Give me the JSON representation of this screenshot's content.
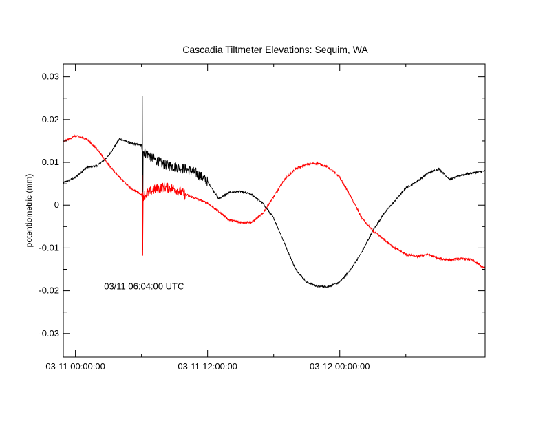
{
  "chart_data": {
    "type": "line",
    "title": "Cascadia Tiltmeter Elevations: Sequim, WA",
    "ylabel": "potentiometric (mm)",
    "xlabel": "",
    "x_unit": "hours since 03-11 00:00:00",
    "xlim": [
      -1.1,
      37.2
    ],
    "ylim": [
      -0.0355,
      0.033
    ],
    "x_ticks": [
      {
        "value": 0,
        "label": "03-11 00:00:00"
      },
      {
        "value": 12,
        "label": "03-11 12:00:00"
      },
      {
        "value": 24,
        "label": "03-12 00:00:00"
      }
    ],
    "x_minor_ticks": [
      6,
      18,
      30
    ],
    "y_ticks": [
      {
        "value": 0.03,
        "label": "0.03"
      },
      {
        "value": 0.02,
        "label": "0.02"
      },
      {
        "value": 0.01,
        "label": "0.01"
      },
      {
        "value": 0,
        "label": "0"
      },
      {
        "value": -0.01,
        "label": "-0.01"
      },
      {
        "value": -0.02,
        "label": "-0.02"
      },
      {
        "value": -0.03,
        "label": "-0.03"
      }
    ],
    "y_minor_ticks": [
      0.025,
      0.015,
      0.005,
      -0.005,
      -0.015,
      -0.025
    ],
    "grid": false,
    "annotation": {
      "text": "03/11 06:04:00 UTC",
      "x": 2.6,
      "y": -0.019
    },
    "series": [
      {
        "color": "#000000",
        "x": [
          -1.1,
          0,
          1,
          2,
          3,
          4,
          5,
          6,
          6.07,
          6.2,
          7,
          8,
          9,
          10,
          11,
          12,
          13,
          14,
          15,
          16,
          17,
          18,
          19,
          20,
          21,
          22,
          23,
          24,
          25,
          26,
          27,
          28,
          29,
          30,
          31,
          32,
          33,
          34,
          35,
          36,
          37.2
        ],
        "y": [
          0.0052,
          0.0065,
          0.0088,
          0.0092,
          0.0115,
          0.0155,
          0.0145,
          0.014,
          0.0125,
          0.0125,
          0.011,
          0.0095,
          0.009,
          0.0085,
          0.0075,
          0.0055,
          0.0015,
          0.003,
          0.0032,
          0.0025,
          0.0005,
          -0.003,
          -0.009,
          -0.015,
          -0.018,
          -0.019,
          -0.019,
          -0.018,
          -0.015,
          -0.011,
          -0.006,
          -0.002,
          0.001,
          0.004,
          0.0055,
          0.0075,
          0.0085,
          0.006,
          0.007,
          0.0075,
          0.008
        ],
        "noise": [
          {
            "from": 6.07,
            "to": 12,
            "amplitude": 0.0012
          },
          {
            "from": 12,
            "to": 37.2,
            "amplitude": 0.0002
          },
          {
            "from": -1.1,
            "to": 6.07,
            "amplitude": 0.0002
          }
        ],
        "spike": {
          "x": 6.07,
          "max": 0.0255,
          "min": -0.0105
        }
      },
      {
        "color": "#ff0000",
        "x": [
          -1.1,
          0,
          1,
          2,
          3,
          4,
          5,
          6,
          6.07,
          7,
          8,
          9,
          10,
          11,
          12,
          13,
          14,
          15,
          16,
          17,
          18,
          19,
          20,
          21,
          22,
          23,
          24,
          25,
          26,
          27,
          28,
          29,
          30,
          31,
          32,
          33,
          34,
          35,
          36,
          37.2
        ],
        "y": [
          0.0148,
          0.0162,
          0.0155,
          0.013,
          0.0095,
          0.0065,
          0.004,
          0.0025,
          0.002,
          0.0035,
          0.0042,
          0.0038,
          0.0025,
          0.0015,
          0.0005,
          -0.0015,
          -0.0035,
          -0.004,
          -0.004,
          -0.002,
          0.002,
          0.006,
          0.0085,
          0.0095,
          0.0098,
          0.0088,
          0.0065,
          0.002,
          -0.003,
          -0.006,
          -0.008,
          -0.01,
          -0.0115,
          -0.012,
          -0.0115,
          -0.0125,
          -0.0128,
          -0.0125,
          -0.0128,
          -0.0148
        ],
        "noise": [
          {
            "from": 6.07,
            "to": 10,
            "amplitude": 0.0012
          },
          {
            "from": 10,
            "to": 37.2,
            "amplitude": 0.00025
          },
          {
            "from": -1.1,
            "to": 6.07,
            "amplitude": 0.0002
          }
        ],
        "spike": {
          "x": 6.07,
          "max": 0.007,
          "min": -0.0118
        }
      }
    ]
  }
}
